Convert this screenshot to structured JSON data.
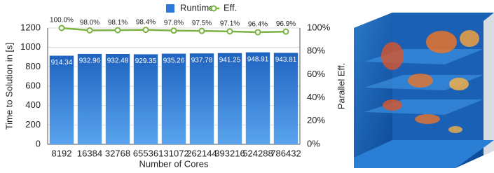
{
  "chart_data": {
    "type": "bar",
    "categories": [
      "8192",
      "16384",
      "32768",
      "65536",
      "131072",
      "262144",
      "393216",
      "524288",
      "786432"
    ],
    "series": [
      {
        "name": "Runtime",
        "color": "#2f7ad8",
        "values": [
          914.34,
          932.96,
          932.48,
          929.35,
          935.26,
          937.78,
          941.25,
          948.91,
          943.81
        ]
      },
      {
        "name": "Eff.",
        "color": "#7cb342",
        "axis": "y2",
        "values": [
          100,
          98,
          98.1,
          98.4,
          97.8,
          97.5,
          97.1,
          96.4,
          96.9
        ],
        "value_labels": [
          "100.0%",
          "98.0%",
          "98.1%",
          "98.4%",
          "97.8%",
          "97.5%",
          "97.1%",
          "96.4%",
          "96.9%"
        ]
      }
    ],
    "x_label": "Number of Cores",
    "y_label": "Time to Solution in [s]",
    "y2_label": "Parallel Eff.",
    "ylim": [
      0,
      1200
    ],
    "yticks": [
      0,
      200,
      400,
      600,
      800,
      1000,
      1200
    ],
    "y2lim": [
      0,
      100
    ],
    "y2ticks": [
      {
        "value": 0,
        "label": "0%"
      },
      {
        "value": 20,
        "label": "20%"
      },
      {
        "value": 40,
        "label": "40%"
      },
      {
        "value": 60,
        "label": "60%"
      },
      {
        "value": 80,
        "label": "80%"
      },
      {
        "value": 100,
        "label": "100%"
      }
    ],
    "grid": true
  }
}
